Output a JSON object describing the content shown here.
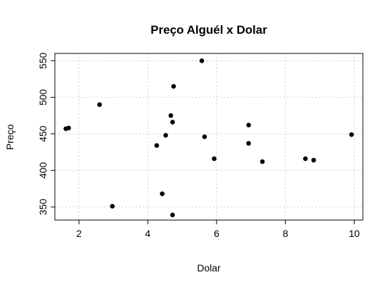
{
  "chart_data": {
    "type": "scatter",
    "title": "Preço Alguél x Dolar",
    "xlabel": "Dolar",
    "ylabel": "Preço",
    "xlim": [
      1.3,
      10.25
    ],
    "ylim": [
      332,
      560
    ],
    "xticks": [
      2,
      4,
      6,
      8,
      10
    ],
    "yticks": [
      350,
      400,
      450,
      500,
      550
    ],
    "grid": true,
    "point_color": "#000000",
    "points": [
      {
        "x": 1.62,
        "y": 457
      },
      {
        "x": 1.7,
        "y": 458
      },
      {
        "x": 2.6,
        "y": 490
      },
      {
        "x": 2.97,
        "y": 351
      },
      {
        "x": 4.26,
        "y": 434
      },
      {
        "x": 4.42,
        "y": 368
      },
      {
        "x": 4.52,
        "y": 448
      },
      {
        "x": 4.67,
        "y": 475
      },
      {
        "x": 4.72,
        "y": 466
      },
      {
        "x": 4.75,
        "y": 515
      },
      {
        "x": 4.72,
        "y": 339
      },
      {
        "x": 5.57,
        "y": 550
      },
      {
        "x": 5.65,
        "y": 446
      },
      {
        "x": 5.93,
        "y": 416
      },
      {
        "x": 6.93,
        "y": 462
      },
      {
        "x": 6.93,
        "y": 437
      },
      {
        "x": 7.33,
        "y": 412
      },
      {
        "x": 8.58,
        "y": 416
      },
      {
        "x": 8.82,
        "y": 414
      },
      {
        "x": 9.92,
        "y": 449
      }
    ]
  }
}
